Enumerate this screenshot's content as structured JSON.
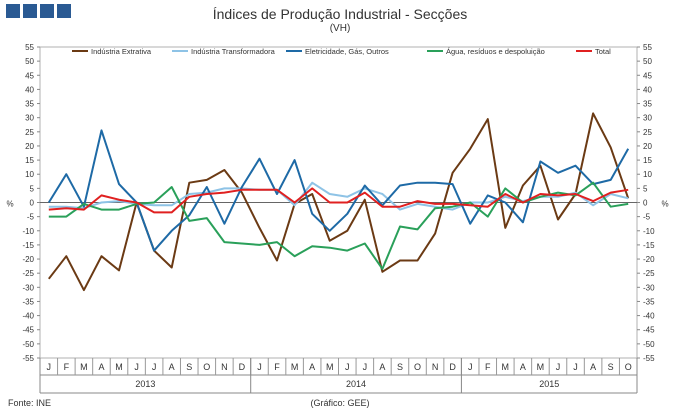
{
  "header": {
    "title": "Índices de Produção Industrial - Secções",
    "subtitle": "(VH)"
  },
  "footer": {
    "source": "Fonte: INE",
    "graphic_note": "(Gráfico: GEE)"
  },
  "chart_data": {
    "type": "line",
    "title": "Índices de Produção Industrial - Secções",
    "subtitle": "(VH)",
    "ylabel": "%",
    "ylim": [
      -55,
      55
    ],
    "ytick_step": 5,
    "y_ticks": [
      "55",
      "50",
      "45",
      "40",
      "35",
      "30",
      "25",
      "20",
      "15",
      "10",
      "5",
      "0",
      "-5",
      "-10",
      "-15",
      "-20",
      "-25",
      "-30",
      "-35",
      "-40",
      "-45",
      "-50",
      "-55"
    ],
    "months": [
      "J",
      "F",
      "M",
      "A",
      "M",
      "J",
      "J",
      "A",
      "S",
      "O",
      "N",
      "D",
      "J",
      "F",
      "M",
      "A",
      "M",
      "J",
      "J",
      "A",
      "S",
      "O",
      "N",
      "D",
      "J",
      "F",
      "M",
      "A",
      "M",
      "J",
      "J",
      "A",
      "S",
      "O"
    ],
    "years": [
      {
        "label": "2013",
        "start": 0,
        "count": 12
      },
      {
        "label": "2014",
        "start": 12,
        "count": 12
      },
      {
        "label": "2015",
        "start": 24,
        "count": 10
      }
    ],
    "legend_position": "top",
    "series": [
      {
        "name": "Indústria Extrativa",
        "color": "#6b3a14",
        "values": [
          -27,
          -19,
          -31,
          -19,
          -24,
          0,
          -17,
          -23,
          7,
          8,
          11.5,
          3.5,
          -9,
          -20.5,
          -0.5,
          3,
          -13.5,
          -10,
          1,
          -24.5,
          -20.5,
          -20.5,
          -11,
          10.5,
          19,
          29.5,
          -9,
          6,
          13,
          -6,
          3,
          31.5,
          19.5,
          1.5
        ]
      },
      {
        "name": "Indústria Transformadora",
        "color": "#8ec3e6",
        "values": [
          -1.5,
          -1.5,
          -2,
          0,
          0.5,
          -0.5,
          -1,
          -1,
          3,
          3.5,
          5,
          5,
          4.5,
          4.5,
          -1,
          7,
          3,
          2,
          5,
          3,
          -2.5,
          -0.5,
          -1.5,
          -2.5,
          0,
          0,
          2,
          0.5,
          2,
          2,
          3.5,
          -1,
          3,
          1.5
        ]
      },
      {
        "name": "Eletricidade, Gás, Outros",
        "color": "#1e6aa6",
        "values": [
          0,
          10,
          -1.5,
          25.5,
          6.5,
          0,
          -17,
          -10,
          -4.5,
          5.5,
          -7.5,
          5.5,
          15.5,
          3,
          15,
          -4,
          -10,
          -4,
          6,
          -1,
          6,
          7,
          7,
          6.5,
          -7.5,
          2.5,
          0,
          -7,
          14.5,
          10.5,
          13,
          6.5,
          8,
          19
        ]
      },
      {
        "name": "Água, resíduos e despoluição",
        "color": "#2aa05a",
        "values": [
          -5,
          -5,
          -0.5,
          -2.5,
          -2.5,
          -0.5,
          0,
          5.5,
          -6.5,
          -5.5,
          -14,
          -14.5,
          -15,
          -14,
          -19,
          -15.5,
          -16,
          -17,
          -14.5,
          -23.5,
          -8.5,
          -9.5,
          -2,
          -1.5,
          0,
          -5,
          5,
          0,
          2,
          3.5,
          2.5,
          7,
          -1.5,
          -0.5
        ]
      },
      {
        "name": "Total",
        "color": "#e02020",
        "values": [
          -2.5,
          -2,
          -2.5,
          2.5,
          1,
          0,
          -3.5,
          -3.5,
          2,
          3,
          3.5,
          4.5,
          4.5,
          4.5,
          0,
          5,
          0,
          0,
          3.5,
          -1.5,
          -1.5,
          0.5,
          -0.5,
          -0.5,
          -1,
          -1.5,
          3,
          0,
          3,
          2.5,
          3,
          0.5,
          3.5,
          4.5
        ]
      }
    ]
  }
}
